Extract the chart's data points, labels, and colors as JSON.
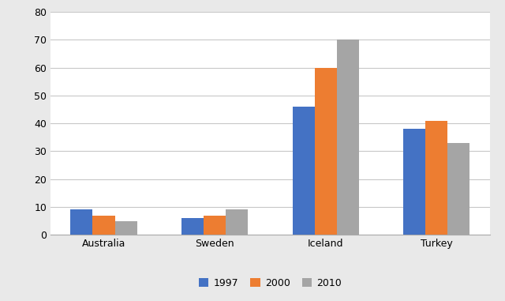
{
  "categories": [
    "Australia",
    "Sweden",
    "Iceland",
    "Turkey"
  ],
  "series": {
    "1997": [
      9,
      6,
      46,
      38
    ],
    "2000": [
      7,
      7,
      60,
      41
    ],
    "2010": [
      5,
      9,
      70,
      33
    ]
  },
  "series_colors": {
    "1997": "#4472C4",
    "2000": "#ED7D31",
    "2010": "#A5A5A5"
  },
  "legend_labels": [
    "1997",
    "2000",
    "2010"
  ],
  "ylim": [
    0,
    80
  ],
  "yticks": [
    0,
    10,
    20,
    30,
    40,
    50,
    60,
    70,
    80
  ],
  "figure_bg": "#E9E9E9",
  "plot_bg": "#FFFFFF",
  "bar_width": 0.2,
  "grid_color": "#C8C8C8",
  "tick_fontsize": 9,
  "legend_fontsize": 9
}
